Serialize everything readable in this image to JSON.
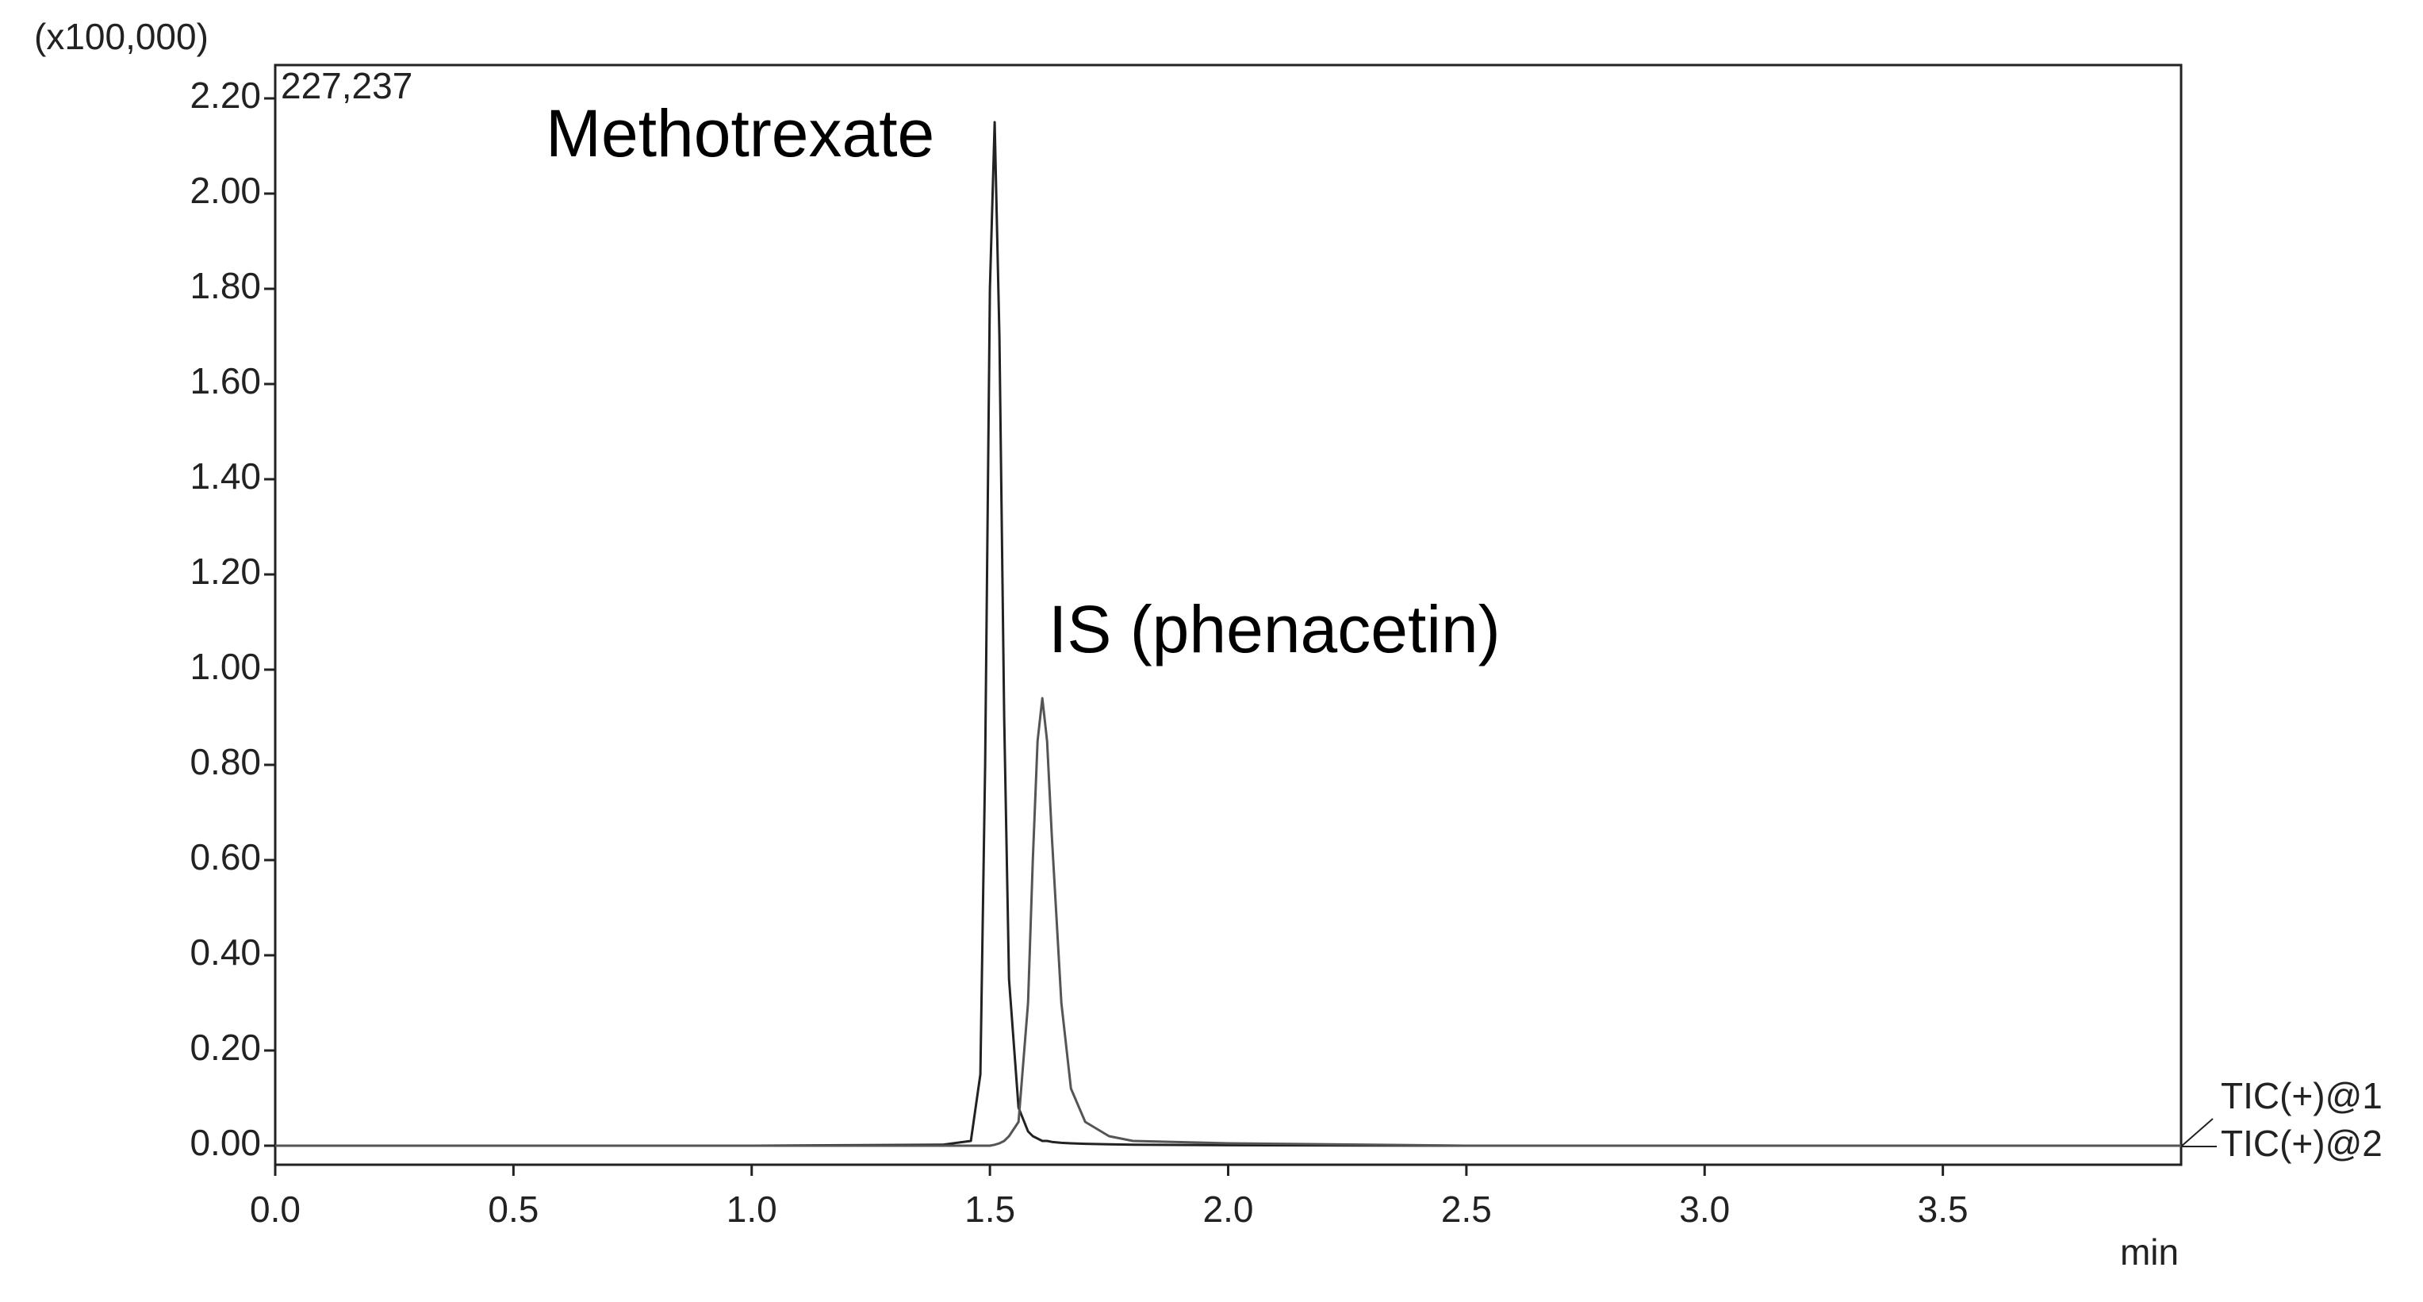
{
  "chart_data": {
    "type": "line",
    "y_unit_label": "(x100,000)",
    "x_label": "min",
    "max_intensity_label": "227,237",
    "annotations": [
      "Methotrexate",
      "IS (phenacetin)"
    ],
    "x": [
      0,
      0.5,
      1.0,
      1.4,
      1.46,
      1.48,
      1.49,
      1.5,
      1.51,
      1.52,
      1.53,
      1.54,
      1.56,
      1.58,
      1.59,
      1.6,
      1.61,
      1.62,
      1.63,
      1.65,
      1.67,
      1.7,
      1.75,
      1.8,
      2.0,
      2.5,
      3.0,
      3.5,
      4.0
    ],
    "series": [
      {
        "name": "TIC(+)@1",
        "color": "#222222",
        "values": [
          0,
          0,
          0,
          0.002,
          0.01,
          0.15,
          0.8,
          1.8,
          2.15,
          1.7,
          0.9,
          0.35,
          0.08,
          0.03,
          0.02,
          0.015,
          0.01,
          0.01,
          0.008,
          0.006,
          0.005,
          0.004,
          0.003,
          0.002,
          0.001,
          0,
          0,
          0,
          0
        ]
      },
      {
        "name": "TIC(+)@2",
        "color": "#555555",
        "values": [
          0,
          0,
          0,
          0,
          0,
          0,
          0,
          0,
          0.002,
          0.005,
          0.01,
          0.02,
          0.05,
          0.3,
          0.6,
          0.85,
          0.94,
          0.85,
          0.65,
          0.3,
          0.12,
          0.05,
          0.02,
          0.01,
          0.005,
          0,
          0,
          0,
          0
        ]
      }
    ],
    "xlim": [
      0,
      4.0
    ],
    "ylim": [
      -0.04,
      2.27
    ],
    "xticks": [
      {
        "value": 0,
        "label": "0.0"
      },
      0.5,
      {
        "value": 1,
        "label": "1.0"
      },
      1.5,
      {
        "value": 2,
        "label": "2.0"
      },
      2.5,
      {
        "value": 3,
        "label": "3.0"
      },
      3.5
    ],
    "yticks": [
      {
        "value": 0,
        "label": "0.00"
      },
      {
        "value": 0.2,
        "label": "0.20"
      },
      {
        "value": 0.4,
        "label": "0.40"
      },
      {
        "value": 0.6,
        "label": "0.60"
      },
      {
        "value": 0.8,
        "label": "0.80"
      },
      {
        "value": 1.0,
        "label": "1.00"
      },
      {
        "value": 1.2,
        "label": "1.20"
      },
      {
        "value": 1.4,
        "label": "1.40"
      },
      {
        "value": 1.6,
        "label": "1.60"
      },
      {
        "value": 1.8,
        "label": "1.80"
      },
      {
        "value": 2.0,
        "label": "2.00"
      },
      {
        "value": 2.2,
        "label": "2.20"
      }
    ],
    "grid": false
  }
}
